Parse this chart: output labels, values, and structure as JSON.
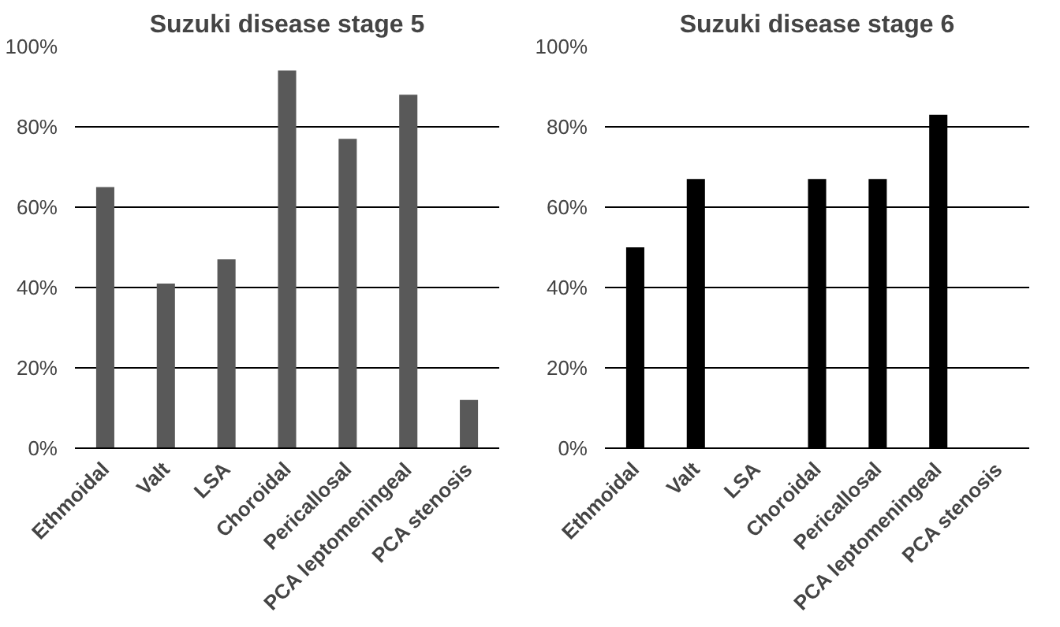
{
  "chart_data": [
    {
      "type": "bar",
      "title": "Suzuki disease stage 5",
      "categories": [
        "Ethmoidal",
        "Valt",
        "LSA",
        "Choroidal",
        "Pericallosal",
        "PCA leptomeningeal",
        "PCA stenosis"
      ],
      "values": [
        65,
        41,
        47,
        94,
        77,
        88,
        12
      ],
      "color": "#595959",
      "ylim": [
        0,
        100
      ],
      "yticks": [
        {
          "value": 0,
          "label": "0%"
        },
        {
          "value": 20,
          "label": "20%"
        },
        {
          "value": 40,
          "label": "40%"
        },
        {
          "value": 60,
          "label": "60%"
        },
        {
          "value": 80,
          "label": "80%"
        },
        {
          "value": 100,
          "label": "100%"
        }
      ],
      "grid": "y"
    },
    {
      "type": "bar",
      "title": "Suzuki disease stage 6",
      "categories": [
        "Ethmoidal",
        "Valt",
        "LSA",
        "Choroidal",
        "Pericallosal",
        "PCA leptomeningeal",
        "PCA stenosis"
      ],
      "values": [
        50,
        67,
        0,
        67,
        67,
        83,
        0
      ],
      "color": "#000000",
      "ylim": [
        0,
        100
      ],
      "yticks": [
        {
          "value": 0,
          "label": "0%"
        },
        {
          "value": 20,
          "label": "20%"
        },
        {
          "value": 40,
          "label": "40%"
        },
        {
          "value": 60,
          "label": "60%"
        },
        {
          "value": 80,
          "label": "80%"
        },
        {
          "value": 100,
          "label": "100%"
        }
      ],
      "grid": "y"
    }
  ]
}
